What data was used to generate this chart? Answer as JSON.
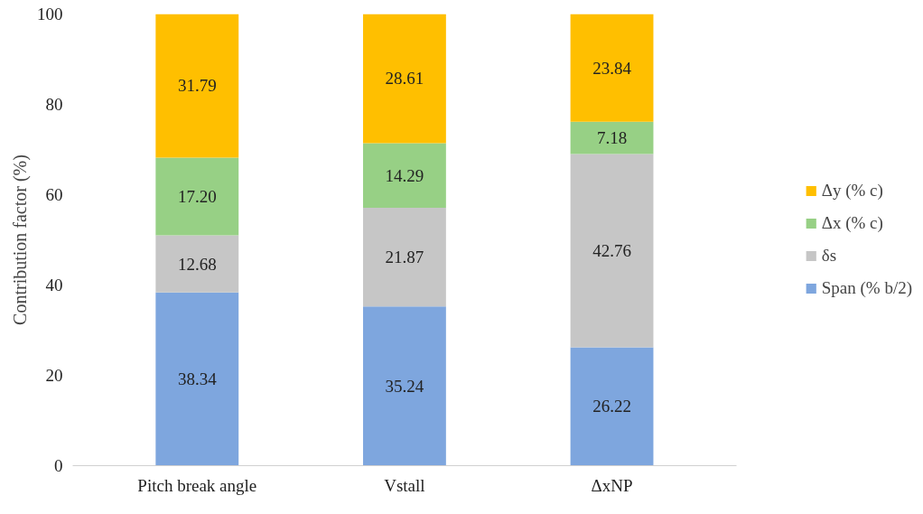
{
  "chart_data": {
    "type": "bar",
    "stacked": true,
    "ylabel": "Contribution factor (%)",
    "categories": [
      "Pitch break angle",
      "Vstall",
      "ΔxNP"
    ],
    "series": [
      {
        "name": "Span (% b/2)",
        "color": "#7ea6de",
        "values": [
          38.34,
          35.24,
          26.22
        ],
        "value_labels": [
          "38.34",
          "35.24",
          "26.22"
        ]
      },
      {
        "name": "δs",
        "color": "#c6c6c6",
        "values": [
          12.68,
          21.87,
          42.76
        ],
        "value_labels": [
          "12.68",
          "21.87",
          "42.76"
        ]
      },
      {
        "name": "Δx (% c)",
        "color": "#97d085",
        "values": [
          17.2,
          14.29,
          7.18
        ],
        "value_labels": [
          "17.20",
          "14.29",
          "7.18"
        ]
      },
      {
        "name": "Δy (% c)",
        "color": "#ffbf00",
        "values": [
          31.79,
          28.61,
          23.84
        ],
        "value_labels": [
          "31.79",
          "28.61",
          "23.84"
        ]
      }
    ],
    "ylim": [
      0,
      100
    ],
    "yticks": [
      0,
      20,
      40,
      60,
      80,
      100
    ],
    "grid": false,
    "legend": "right"
  }
}
